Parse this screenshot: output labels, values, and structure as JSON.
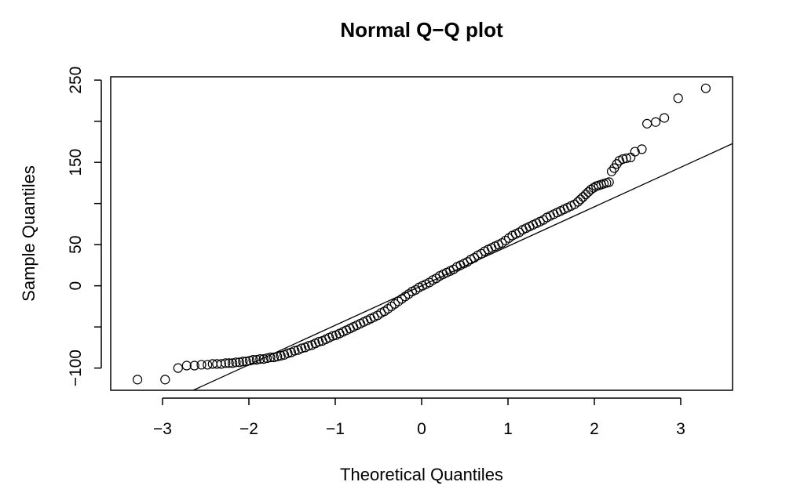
{
  "chart_data": {
    "type": "scatter",
    "title": "Normal Q−Q plot",
    "xlabel": "Theoretical Quantiles",
    "ylabel": "Sample Quantiles",
    "xlim": [
      -3.6,
      3.6
    ],
    "ylim": [
      -127,
      254
    ],
    "x_ticks": [
      -3,
      -2,
      -1,
      0,
      1,
      2,
      3
    ],
    "x_tick_labels": [
      "−3",
      "−2",
      "−1",
      "0",
      "1",
      "2",
      "3"
    ],
    "y_ticks": [
      -100,
      -50,
      0,
      50,
      100,
      150,
      200,
      250
    ],
    "y_tick_labels": [
      "−100",
      "",
      "0",
      "50",
      "",
      "150",
      "",
      "250"
    ],
    "grid": false,
    "reference_line": {
      "slope": 48,
      "intercept": 0
    },
    "series": [
      {
        "marker": "open-circle",
        "points": [
          [
            -3.29,
            -114
          ],
          [
            -2.97,
            -114
          ],
          [
            -2.82,
            -100
          ],
          [
            -2.72,
            -97
          ],
          [
            -2.63,
            -97
          ],
          [
            -2.55,
            -96
          ],
          [
            -2.48,
            -96
          ],
          [
            -2.42,
            -95
          ],
          [
            -2.37,
            -95
          ],
          [
            -2.32,
            -95
          ],
          [
            -2.27,
            -94
          ],
          [
            -2.23,
            -94
          ],
          [
            -2.19,
            -94
          ],
          [
            -2.15,
            -93
          ],
          [
            -2.11,
            -93
          ],
          [
            -2.07,
            -92
          ],
          [
            -2.03,
            -92
          ],
          [
            -1.99,
            -91
          ],
          [
            -1.95,
            -90
          ],
          [
            -1.91,
            -90
          ],
          [
            -1.87,
            -89
          ],
          [
            -1.83,
            -89
          ],
          [
            -1.79,
            -88
          ],
          [
            -1.75,
            -87
          ],
          [
            -1.71,
            -87
          ],
          [
            -1.67,
            -86
          ],
          [
            -1.63,
            -85
          ],
          [
            -1.59,
            -84
          ],
          [
            -1.55,
            -82
          ],
          [
            -1.51,
            -81
          ],
          [
            -1.47,
            -79
          ],
          [
            -1.43,
            -78
          ],
          [
            -1.39,
            -76
          ],
          [
            -1.35,
            -75
          ],
          [
            -1.31,
            -73
          ],
          [
            -1.27,
            -72
          ],
          [
            -1.23,
            -70
          ],
          [
            -1.19,
            -68
          ],
          [
            -1.15,
            -67
          ],
          [
            -1.11,
            -65
          ],
          [
            -1.07,
            -63
          ],
          [
            -1.03,
            -61
          ],
          [
            -0.99,
            -60
          ],
          [
            -0.95,
            -58
          ],
          [
            -0.91,
            -56
          ],
          [
            -0.87,
            -54
          ],
          [
            -0.83,
            -52
          ],
          [
            -0.79,
            -50
          ],
          [
            -0.75,
            -48
          ],
          [
            -0.71,
            -46
          ],
          [
            -0.67,
            -44
          ],
          [
            -0.63,
            -42
          ],
          [
            -0.59,
            -40
          ],
          [
            -0.55,
            -38
          ],
          [
            -0.51,
            -36
          ],
          [
            -0.47,
            -33
          ],
          [
            -0.43,
            -31
          ],
          [
            -0.39,
            -28
          ],
          [
            -0.35,
            -25
          ],
          [
            -0.31,
            -22
          ],
          [
            -0.27,
            -19
          ],
          [
            -0.23,
            -16
          ],
          [
            -0.19,
            -13
          ],
          [
            -0.15,
            -10
          ],
          [
            -0.11,
            -7
          ],
          [
            -0.07,
            -5
          ],
          [
            -0.03,
            -2
          ],
          [
            0.01,
            0
          ],
          [
            0.05,
            2
          ],
          [
            0.09,
            4
          ],
          [
            0.13,
            7
          ],
          [
            0.17,
            9
          ],
          [
            0.21,
            12
          ],
          [
            0.25,
            14
          ],
          [
            0.29,
            16
          ],
          [
            0.33,
            18
          ],
          [
            0.37,
            20
          ],
          [
            0.41,
            23
          ],
          [
            0.45,
            25
          ],
          [
            0.49,
            27
          ],
          [
            0.53,
            29
          ],
          [
            0.57,
            32
          ],
          [
            0.61,
            34
          ],
          [
            0.65,
            37
          ],
          [
            0.69,
            39
          ],
          [
            0.73,
            42
          ],
          [
            0.77,
            44
          ],
          [
            0.81,
            46
          ],
          [
            0.85,
            48
          ],
          [
            0.89,
            50
          ],
          [
            0.93,
            52
          ],
          [
            0.97,
            55
          ],
          [
            1.01,
            58
          ],
          [
            1.05,
            61
          ],
          [
            1.09,
            63
          ],
          [
            1.13,
            65
          ],
          [
            1.17,
            68
          ],
          [
            1.21,
            70
          ],
          [
            1.25,
            72
          ],
          [
            1.29,
            74
          ],
          [
            1.33,
            76
          ],
          [
            1.37,
            78
          ],
          [
            1.41,
            80
          ],
          [
            1.45,
            83
          ],
          [
            1.49,
            85
          ],
          [
            1.53,
            87
          ],
          [
            1.57,
            89
          ],
          [
            1.61,
            91
          ],
          [
            1.65,
            93
          ],
          [
            1.69,
            95
          ],
          [
            1.73,
            97
          ],
          [
            1.77,
            99
          ],
          [
            1.81,
            102
          ],
          [
            1.84,
            105
          ],
          [
            1.87,
            108
          ],
          [
            1.9,
            111
          ],
          [
            1.93,
            114
          ],
          [
            1.96,
            117
          ],
          [
            1.99,
            119
          ],
          [
            2.02,
            121
          ],
          [
            2.05,
            122
          ],
          [
            2.08,
            123
          ],
          [
            2.11,
            124
          ],
          [
            2.14,
            125
          ],
          [
            2.17,
            126
          ],
          [
            2.2,
            139
          ],
          [
            2.23,
            143
          ],
          [
            2.26,
            148
          ],
          [
            2.29,
            152
          ],
          [
            2.33,
            154
          ],
          [
            2.37,
            155
          ],
          [
            2.42,
            156
          ],
          [
            2.47,
            163
          ],
          [
            2.55,
            166
          ],
          [
            2.61,
            197
          ],
          [
            2.71,
            199
          ],
          [
            2.81,
            204
          ],
          [
            2.97,
            228
          ],
          [
            3.29,
            240
          ]
        ]
      }
    ]
  }
}
